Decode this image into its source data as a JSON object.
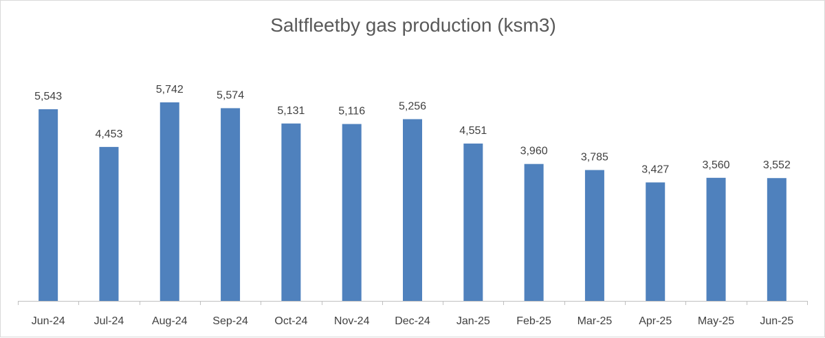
{
  "chart_data": {
    "type": "bar",
    "title": "Saltfleetby gas production (ksm3)",
    "categories": [
      "Jun-24",
      "Jul-24",
      "Aug-24",
      "Sep-24",
      "Oct-24",
      "Nov-24",
      "Dec-24",
      "Jan-25",
      "Feb-25",
      "Mar-25",
      "Apr-25",
      "May-25",
      "Jun-25"
    ],
    "values": [
      5543,
      4453,
      5742,
      5574,
      5131,
      5116,
      5256,
      4551,
      3960,
      3785,
      3427,
      3560,
      3552
    ],
    "data_labels": [
      "5,543",
      "4,453",
      "5,742",
      "5,574",
      "5,131",
      "5,116",
      "5,256",
      "4,551",
      "3,960",
      "3,785",
      "3,427",
      "3,560",
      "3,552"
    ],
    "xlabel": "",
    "ylabel": "",
    "ylim": [
      0,
      7000
    ],
    "grid": false,
    "legend": "none",
    "bar_color": "#4f81bd",
    "axis_color": "#bfbfbf",
    "text_color": "#404040"
  }
}
